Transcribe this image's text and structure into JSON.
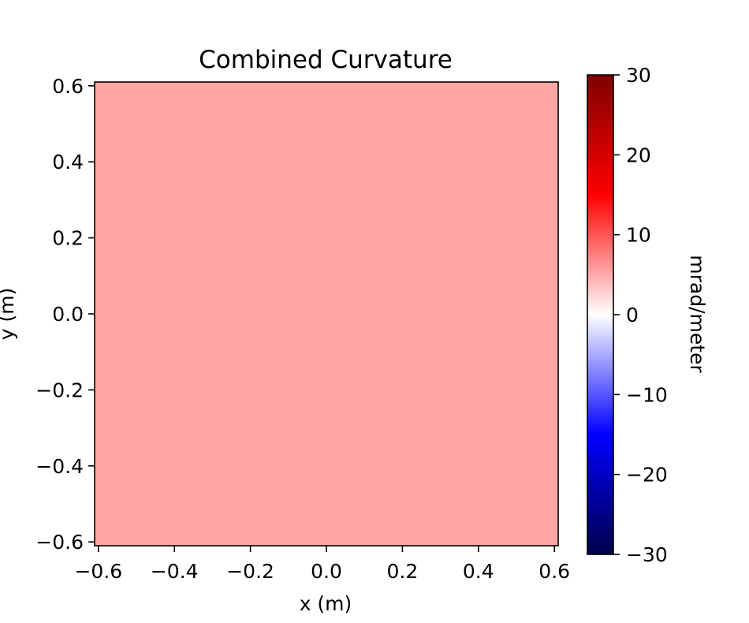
{
  "chart_data": {
    "type": "heatmap",
    "title": "Combined Curvature",
    "xlabel": "x (m)",
    "ylabel": "y (m)",
    "xlim": [
      -0.61,
      0.61
    ],
    "ylim": [
      -0.61,
      0.61
    ],
    "xticks": [
      -0.6,
      -0.4,
      -0.2,
      0.0,
      0.2,
      0.4,
      0.6
    ],
    "yticks": [
      -0.6,
      -0.4,
      -0.2,
      0.0,
      0.2,
      0.4,
      0.6
    ],
    "xtick_labels": [
      "−0.6",
      "−0.4",
      "−0.2",
      "0.0",
      "0.2",
      "0.4",
      "0.6"
    ],
    "ytick_labels": [
      "−0.6",
      "−0.4",
      "−0.2",
      "0.0",
      "0.2",
      "0.4",
      "0.6"
    ],
    "value": 6,
    "field_color": "#ffa6a6",
    "grid": false,
    "colorbar": {
      "label": "mrad/meter",
      "range": [
        -30,
        30
      ],
      "ticks": [
        -30,
        -20,
        -10,
        0,
        10,
        20,
        30
      ],
      "tick_labels": [
        "−30",
        "−20",
        "−10",
        "0",
        "10",
        "20",
        "30"
      ],
      "colormap": "seismic",
      "color_stops": [
        {
          "value": -30,
          "color": "#00004c"
        },
        {
          "value": -15,
          "color": "#0000ff"
        },
        {
          "value": 0,
          "color": "#ffffff"
        },
        {
          "value": 15,
          "color": "#ff0000"
        },
        {
          "value": 30,
          "color": "#7f0000"
        }
      ]
    }
  }
}
